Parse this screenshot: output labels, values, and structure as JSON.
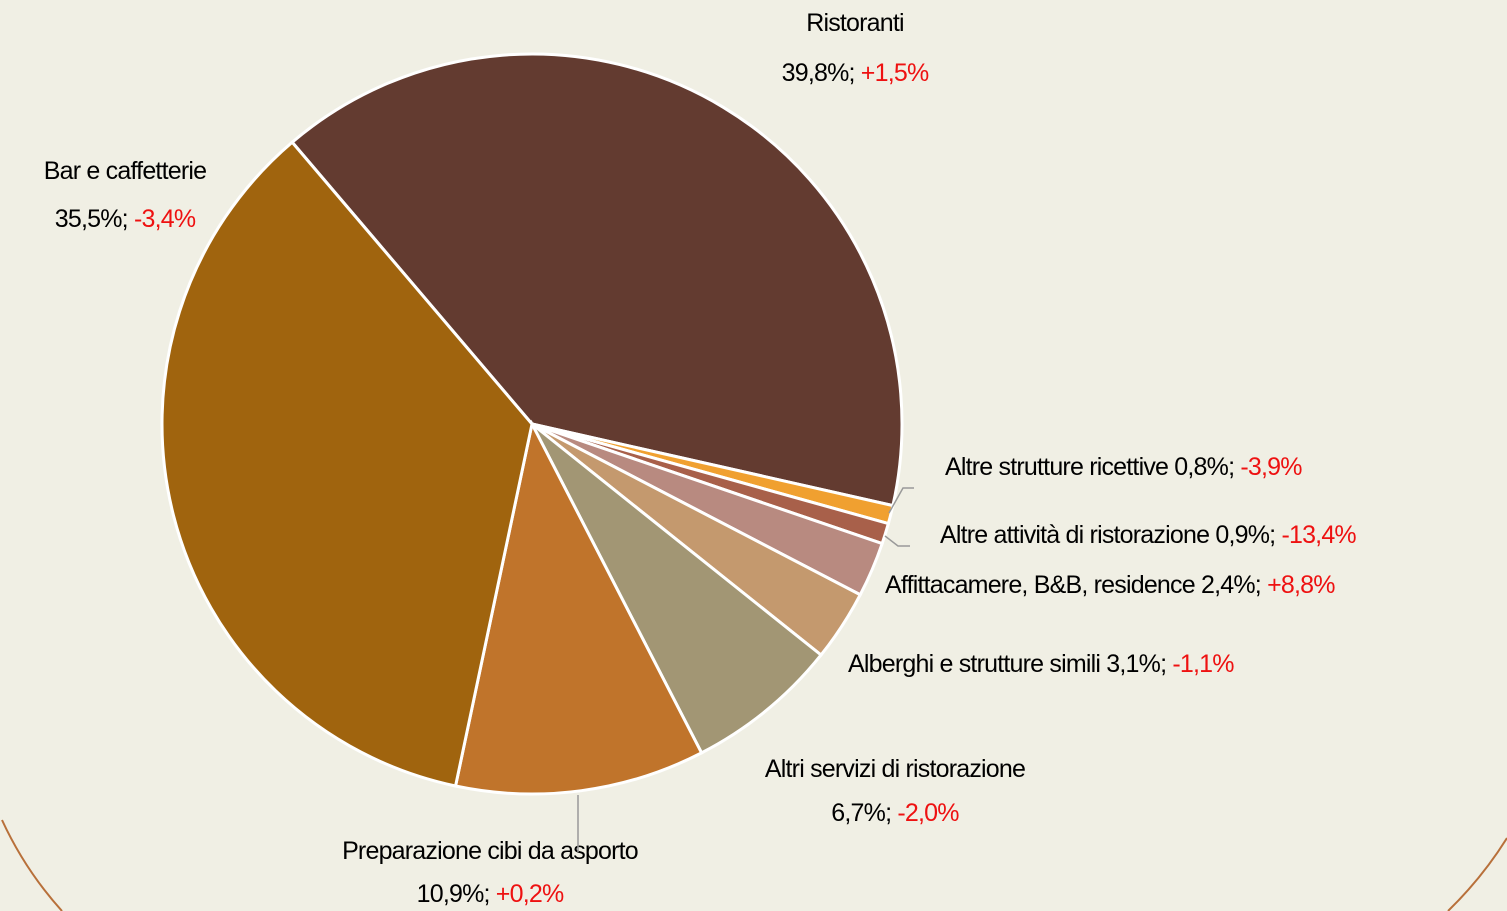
{
  "chart_data": {
    "type": "pie",
    "categories": [
      "Ristoranti",
      "Altre strutture ricettive",
      "Altre attività di ristorazione",
      "Affittacamere, B&B, residence",
      "Alberghi e strutture simili",
      "Altri servizi di ristorazione",
      "Preparazione cibi da asporto",
      "Bar e caffetterie"
    ],
    "values": [
      39.8,
      0.8,
      0.9,
      2.4,
      3.1,
      6.7,
      10.9,
      35.5
    ],
    "value_labels": [
      "39,8%",
      "0,8%",
      "0,9%",
      "2,4%",
      "3,1%",
      "6,7%",
      "10,9%",
      "35,5%"
    ],
    "change_labels": [
      "+1,5%",
      "-3,9%",
      "-13,4%",
      "+8,8%",
      "-1,1%",
      "-2,0%",
      "+0,2%",
      "-3,4%"
    ],
    "label_separator": "; ",
    "colors": [
      "#633b30",
      "#f0a030",
      "#a8604a",
      "#b88a80",
      "#c4996e",
      "#a29674",
      "#c0742b",
      "#a0640e"
    ]
  }
}
